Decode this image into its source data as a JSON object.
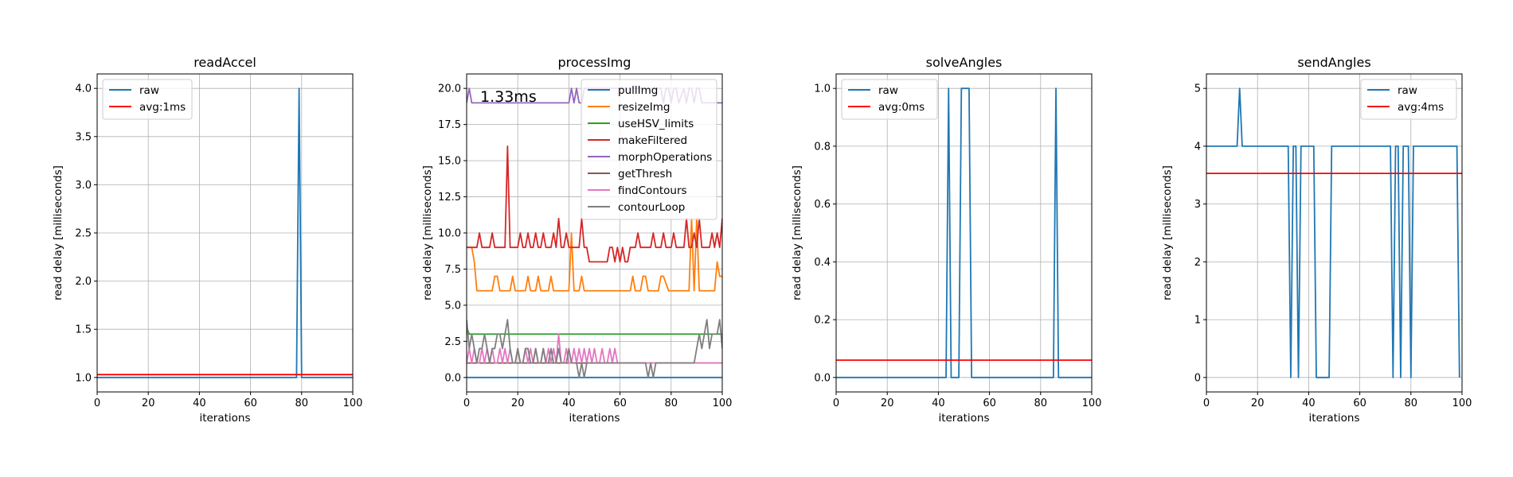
{
  "chart_data": [
    {
      "type": "line",
      "title": "readAccel",
      "xlabel": "iterations",
      "ylabel": "read delay [milliseconds]",
      "xlim": [
        0,
        100
      ],
      "ylim": [
        0.85,
        4.15
      ],
      "xticks": [
        0,
        20,
        40,
        60,
        80,
        100
      ],
      "yticks": [
        1.0,
        1.5,
        2.0,
        2.5,
        3.0,
        3.5,
        4.0
      ],
      "ytick_labels": [
        "1.0",
        "1.5",
        "2.0",
        "2.5",
        "3.0",
        "3.5",
        "4.0"
      ],
      "grid": true,
      "legend": "upper left",
      "series": [
        {
          "name": "raw",
          "color": "#1f77b4",
          "x": [
            0,
            78,
            79,
            80,
            100
          ],
          "y": [
            1,
            1,
            4,
            1,
            1
          ]
        },
        {
          "name": "avg:1ms",
          "color": "#ff0000",
          "x": [
            0,
            100
          ],
          "y": [
            1.03,
            1.03
          ]
        }
      ]
    },
    {
      "type": "line",
      "title": "processImg",
      "xlabel": "iterations",
      "ylabel": "read delay [milliseconds]",
      "xlim": [
        0,
        100
      ],
      "ylim": [
        -1.0,
        21.0
      ],
      "xticks": [
        0,
        20,
        40,
        60,
        80,
        100
      ],
      "yticks": [
        0.0,
        2.5,
        5.0,
        7.5,
        10.0,
        12.5,
        15.0,
        17.5,
        20.0
      ],
      "ytick_labels": [
        "0.0",
        "2.5",
        "5.0",
        "7.5",
        "10.0",
        "12.5",
        "15.0",
        "17.5",
        "20.0"
      ],
      "grid": true,
      "legend": "upper right",
      "annotation": "1.33ms",
      "series": [
        {
          "name": "pullImg",
          "color": "#1f77b4",
          "x": [
            0,
            100
          ],
          "y": [
            0,
            0
          ]
        },
        {
          "name": "resizeImg",
          "color": "#ff7f0e",
          "x": [
            0,
            2,
            3,
            4,
            5,
            6,
            10,
            11,
            12,
            13,
            17,
            18,
            19,
            22,
            23,
            24,
            25,
            27,
            28,
            29,
            32,
            33,
            34,
            40,
            41,
            42,
            43,
            44,
            45,
            46,
            47,
            64,
            65,
            66,
            68,
            69,
            70,
            71,
            75,
            76,
            77,
            79,
            80,
            81,
            87,
            88,
            89,
            90,
            91,
            96,
            97,
            98,
            99,
            100
          ],
          "y": [
            9,
            9,
            8,
            6,
            6,
            6,
            6,
            7,
            7,
            6,
            6,
            7,
            6,
            6,
            6,
            7,
            6,
            6,
            7,
            6,
            6,
            7,
            6,
            6,
            10,
            6,
            6,
            6,
            7,
            6,
            6,
            6,
            7,
            6,
            6,
            7,
            7,
            6,
            6,
            7,
            7,
            6,
            6,
            6,
            6,
            11,
            6,
            11,
            6,
            6,
            6,
            8,
            7,
            7
          ]
        },
        {
          "name": "useHSV_limits",
          "color": "#2ca02c",
          "x": [
            0,
            1,
            100
          ],
          "y": [
            3.5,
            3,
            3
          ]
        },
        {
          "name": "makeFiltered",
          "color": "#d62728",
          "x": [
            0,
            4,
            5,
            6,
            9,
            10,
            11,
            15,
            16,
            17,
            20,
            21,
            22,
            23,
            24,
            25,
            26,
            27,
            28,
            29,
            30,
            31,
            33,
            34,
            35,
            36,
            37,
            38,
            39,
            40,
            42,
            44,
            45,
            46,
            47,
            48,
            49,
            50,
            55,
            56,
            57,
            58,
            59,
            60,
            61,
            62,
            63,
            64,
            65,
            66,
            67,
            68,
            72,
            73,
            74,
            75,
            76,
            77,
            78,
            79,
            80,
            81,
            82,
            83,
            85,
            86,
            87,
            88,
            89,
            90,
            91,
            92,
            94,
            95,
            96,
            97,
            98,
            99,
            100
          ],
          "y": [
            9,
            9,
            10,
            9,
            9,
            10,
            9,
            9,
            16,
            9,
            9,
            10,
            9,
            9,
            10,
            9,
            9,
            10,
            9,
            9,
            10,
            9,
            9,
            10,
            9,
            11,
            9,
            9,
            10,
            9,
            9,
            9,
            11,
            9,
            9,
            8,
            8,
            8,
            8,
            9,
            9,
            8,
            9,
            8,
            9,
            8,
            8,
            9,
            9,
            9,
            10,
            9,
            9,
            10,
            9,
            9,
            9,
            10,
            9,
            9,
            9,
            10,
            9,
            9,
            9,
            11,
            9,
            9,
            10,
            9,
            11,
            9,
            9,
            9,
            10,
            9,
            10,
            9,
            11
          ]
        },
        {
          "name": "morphOperations",
          "color": "#9467bd",
          "x": [
            0,
            1,
            2,
            6,
            7,
            40,
            41,
            42,
            43,
            44,
            45,
            46,
            47,
            75,
            76,
            77,
            78,
            79,
            80,
            81,
            82,
            83,
            85,
            86,
            87,
            88,
            89,
            90,
            91,
            92,
            100
          ],
          "y": [
            19,
            20,
            19,
            19,
            19,
            19,
            20,
            19,
            20,
            19,
            19,
            20,
            20,
            20,
            20,
            19,
            20,
            20,
            19,
            20,
            20,
            19,
            20,
            19,
            20,
            20,
            19,
            20,
            20,
            19,
            19
          ]
        },
        {
          "name": "getThresh",
          "color": "#8c564b",
          "x": [
            0,
            100
          ],
          "y": [
            1,
            1
          ]
        },
        {
          "name": "findContours",
          "color": "#e377c2",
          "x": [
            0,
            1,
            2,
            3,
            4,
            5,
            6,
            7,
            8,
            9,
            10,
            11,
            12,
            13,
            14,
            15,
            16,
            17,
            18,
            19,
            20,
            21,
            22,
            23,
            24,
            25,
            26,
            27,
            28,
            29,
            30,
            31,
            32,
            33,
            34,
            35,
            36,
            37,
            38,
            39,
            40,
            41,
            42,
            43,
            44,
            45,
            46,
            47,
            48,
            49,
            50,
            51,
            52,
            53,
            54,
            55,
            56,
            57,
            58,
            59,
            60,
            100
          ],
          "y": [
            1,
            2,
            1,
            2,
            1,
            1,
            2,
            1,
            2,
            1,
            2,
            1,
            1,
            2,
            1,
            2,
            1,
            2,
            1,
            1,
            2,
            1,
            1,
            2,
            1,
            2,
            1,
            2,
            1,
            1,
            2,
            1,
            2,
            1,
            2,
            1,
            3,
            1,
            1,
            2,
            1,
            1,
            2,
            1,
            2,
            1,
            2,
            1,
            2,
            1,
            2,
            1,
            1,
            2,
            1,
            1,
            2,
            1,
            2,
            1,
            1,
            1
          ]
        },
        {
          "name": "contourLoop",
          "color": "#7f7f7f",
          "x": [
            0,
            1,
            2,
            3,
            4,
            5,
            6,
            7,
            8,
            9,
            10,
            11,
            12,
            13,
            14,
            15,
            16,
            17,
            18,
            19,
            20,
            21,
            22,
            23,
            24,
            25,
            26,
            27,
            28,
            29,
            30,
            31,
            32,
            33,
            34,
            35,
            36,
            37,
            38,
            39,
            40,
            41,
            42,
            43,
            44,
            45,
            46,
            47,
            48,
            49,
            50,
            51,
            52,
            53,
            54,
            55,
            56,
            57,
            58,
            59,
            60,
            61,
            62,
            63,
            64,
            65,
            66,
            67,
            68,
            69,
            70,
            71,
            72,
            73,
            74,
            75,
            76,
            77,
            78,
            79,
            80,
            81,
            82,
            83,
            84,
            85,
            86,
            87,
            88,
            89,
            90,
            91,
            92,
            93,
            94,
            95,
            96,
            97,
            98,
            99,
            100
          ],
          "y": [
            4,
            2,
            3,
            2,
            1,
            2,
            2,
            3,
            2,
            1,
            2,
            2,
            3,
            3,
            2,
            3,
            4,
            2,
            1,
            1,
            2,
            1,
            1,
            2,
            2,
            1,
            1,
            2,
            1,
            1,
            2,
            1,
            1,
            2,
            1,
            1,
            2,
            1,
            1,
            1,
            2,
            1,
            1,
            1,
            0,
            1,
            0,
            1,
            1,
            1,
            1,
            1,
            1,
            1,
            1,
            1,
            1,
            1,
            1,
            1,
            1,
            1,
            1,
            1,
            1,
            1,
            1,
            1,
            1,
            1,
            1,
            0,
            1,
            0,
            1,
            1,
            1,
            1,
            1,
            1,
            1,
            1,
            1,
            1,
            1,
            1,
            1,
            1,
            1,
            1,
            2,
            3,
            2,
            3,
            4,
            2,
            3,
            3,
            3,
            4,
            2
          ]
        }
      ]
    },
    {
      "type": "line",
      "title": "solveAngles",
      "xlabel": "iterations",
      "ylabel": "read delay [milliseconds]",
      "xlim": [
        0,
        100
      ],
      "ylim": [
        -0.05,
        1.05
      ],
      "xticks": [
        0,
        20,
        40,
        60,
        80,
        100
      ],
      "yticks": [
        0.0,
        0.2,
        0.4,
        0.6,
        0.8,
        1.0
      ],
      "ytick_labels": [
        "0.0",
        "0.2",
        "0.4",
        "0.6",
        "0.8",
        "1.0"
      ],
      "grid": true,
      "legend": "upper left",
      "series": [
        {
          "name": "raw",
          "color": "#1f77b4",
          "x": [
            0,
            43,
            44,
            45,
            46,
            47,
            48,
            49,
            50,
            51,
            52,
            53,
            85,
            86,
            87,
            100
          ],
          "y": [
            0,
            0,
            1,
            0,
            0,
            0,
            0,
            1,
            1,
            1,
            1,
            0,
            0,
            1,
            0,
            0
          ]
        },
        {
          "name": "avg:0ms",
          "color": "#ff0000",
          "x": [
            0,
            100
          ],
          "y": [
            0.06,
            0.06
          ]
        }
      ]
    },
    {
      "type": "line",
      "title": "sendAngles",
      "xlabel": "iterations",
      "ylabel": "read delay [milliseconds]",
      "xlim": [
        0,
        100
      ],
      "ylim": [
        -0.25,
        5.25
      ],
      "xticks": [
        0,
        20,
        40,
        60,
        80,
        100
      ],
      "yticks": [
        0,
        1,
        2,
        3,
        4,
        5
      ],
      "ytick_labels": [
        "0",
        "1",
        "2",
        "3",
        "4",
        "5"
      ],
      "grid": true,
      "legend": "upper right",
      "series": [
        {
          "name": "raw",
          "color": "#1f77b4",
          "x": [
            0,
            12,
            13,
            14,
            32,
            33,
            34,
            35,
            36,
            37,
            39,
            40,
            42,
            43,
            44,
            45,
            48,
            49,
            72,
            73,
            74,
            75,
            76,
            77,
            79,
            80,
            81,
            82,
            98,
            99
          ],
          "y": [
            4,
            4,
            5,
            4,
            4,
            0,
            4,
            4,
            0,
            4,
            4,
            4,
            4,
            0,
            0,
            0,
            0,
            4,
            4,
            0,
            4,
            4,
            0,
            4,
            4,
            0,
            4,
            4,
            4,
            0
          ]
        },
        {
          "name": "avg:4ms",
          "color": "#ff0000",
          "x": [
            0,
            100
          ],
          "y": [
            3.53,
            3.53
          ]
        }
      ]
    }
  ]
}
